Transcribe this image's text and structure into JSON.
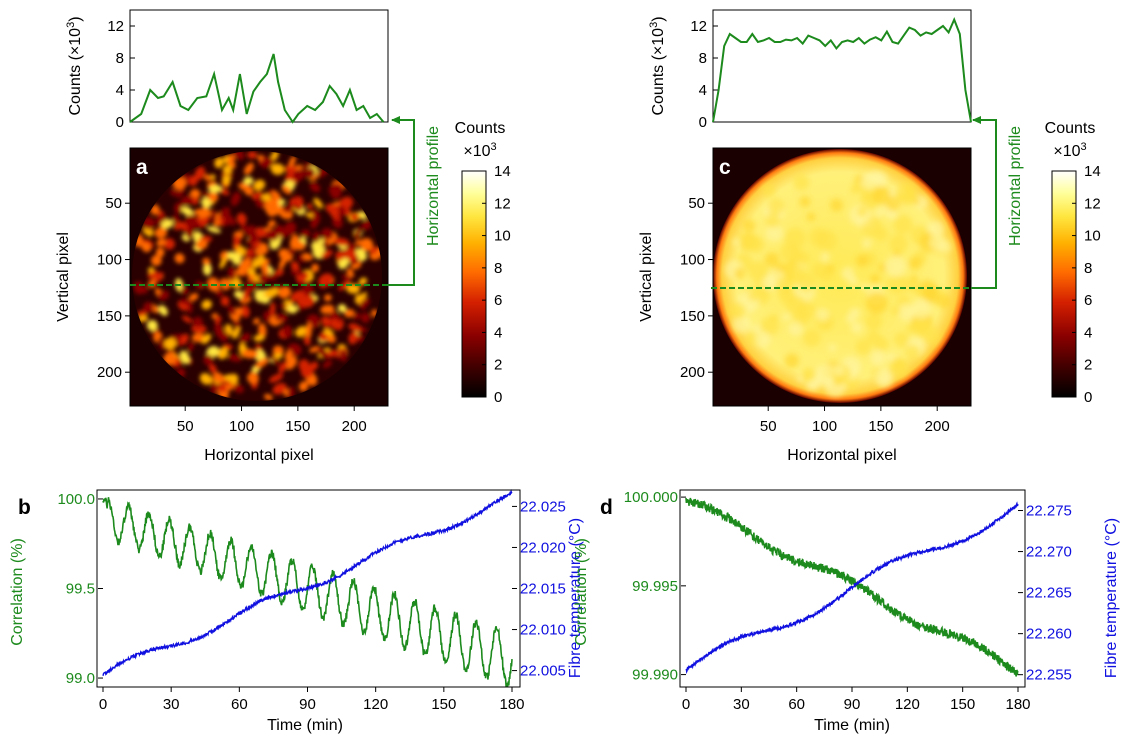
{
  "colors": {
    "green": "#1c8a1c",
    "blue": "#1010e0",
    "profile_arrow": "#1c8a1c",
    "colormap": [
      "#000000",
      "#3a0000",
      "#8a0000",
      "#d42000",
      "#ff6a00",
      "#ffb000",
      "#ffe640",
      "#ffff9a",
      "#ffffff"
    ]
  },
  "panel_a": {
    "letter": "a",
    "profile_ylabel": "Counts (×10",
    "profile_ylabel_exp": "3",
    "profile_ylabel_end": ")",
    "xlabel": "Horizontal pixel",
    "ylabel": "Vertical pixel",
    "annotation": "Horizontal profile",
    "colorbar_title": "Counts",
    "colorbar_unit": "×10",
    "colorbar_unit_exp": "3"
  },
  "panel_c": {
    "letter": "c",
    "profile_ylabel": "Counts (×10",
    "profile_ylabel_exp": "3",
    "profile_ylabel_end": ")",
    "xlabel": "Horizontal pixel",
    "ylabel": "Vertical pixel",
    "annotation": "Horizontal profile",
    "colorbar_title": "Counts",
    "colorbar_unit": "×10",
    "colorbar_unit_exp": "3"
  },
  "panel_b": {
    "letter": "b",
    "xlabel": "Time (min)",
    "ylabel_left": "Correlation (%)",
    "ylabel_right": "Fibre temperature (°C)"
  },
  "panel_d": {
    "letter": "d",
    "xlabel": "Time (min)",
    "ylabel_left": "Correlation (%)",
    "ylabel_right": "Fibre temperature (°C)"
  },
  "chart_data": [
    {
      "id": "a-profile",
      "type": "line",
      "x": [
        0,
        10,
        18,
        25,
        30,
        38,
        45,
        52,
        60,
        68,
        75,
        82,
        88,
        92,
        98,
        104,
        110,
        116,
        122,
        128,
        132,
        138,
        145,
        150,
        158,
        165,
        172,
        178,
        184,
        190,
        196,
        202,
        208,
        214,
        220,
        226
      ],
      "y": [
        0,
        1,
        4,
        3,
        3.2,
        5,
        2,
        1.5,
        3,
        3.2,
        6,
        1.5,
        3,
        1.5,
        6,
        1,
        3.8,
        5,
        6,
        8.5,
        5,
        1.5,
        0,
        1,
        2,
        1.5,
        2.5,
        4.5,
        3.5,
        2,
        4,
        1.5,
        2,
        0.5,
        1,
        0
      ],
      "xlim": [
        0,
        230
      ],
      "ylim": [
        0,
        14
      ],
      "yticks": [
        0,
        4,
        8,
        12
      ],
      "ylabel": "Counts (×10^3)"
    },
    {
      "id": "a-image",
      "type": "heatmap",
      "xticks": [
        50,
        100,
        150,
        200
      ],
      "yticks": [
        50,
        100,
        150,
        200
      ],
      "xlim": [
        1,
        230
      ],
      "ylim": [
        1,
        230
      ],
      "xlabel": "Horizontal pixel",
      "ylabel": "Vertical pixel",
      "profile_row": 125,
      "colorbar": {
        "min": 0,
        "max": 14,
        "ticks": [
          0,
          2,
          4,
          6,
          8,
          10,
          12,
          14
        ],
        "title": "Counts ×10^3"
      },
      "description_values": {
        "pattern": "speckle",
        "peak": 14
      }
    },
    {
      "id": "c-profile",
      "type": "line",
      "x": [
        0,
        5,
        10,
        15,
        20,
        25,
        30,
        35,
        40,
        45,
        50,
        55,
        60,
        65,
        70,
        75,
        80,
        85,
        90,
        95,
        100,
        105,
        110,
        115,
        120,
        125,
        130,
        135,
        140,
        145,
        150,
        155,
        160,
        165,
        170,
        175,
        180,
        185,
        190,
        195,
        200,
        205,
        210,
        215,
        220,
        225,
        230
      ],
      "y": [
        0,
        4,
        9.5,
        11,
        10.5,
        10,
        10,
        11,
        10,
        10.2,
        10.5,
        10,
        10,
        10.3,
        10.2,
        10.5,
        9.8,
        10.8,
        10.5,
        10.2,
        9.5,
        10.2,
        9.2,
        10,
        10.2,
        10,
        10.5,
        9.8,
        10.3,
        10.6,
        10.2,
        11.3,
        10,
        9.8,
        10.8,
        11.8,
        11.5,
        10.8,
        11.2,
        11,
        11.5,
        12,
        11.2,
        12.8,
        11,
        4,
        0
      ],
      "xlim": [
        0,
        230
      ],
      "ylim": [
        0,
        14
      ],
      "yticks": [
        0,
        4,
        8,
        12
      ],
      "ylabel": "Counts (×10^3)"
    },
    {
      "id": "c-image",
      "type": "heatmap",
      "xticks": [
        50,
        100,
        150,
        200
      ],
      "yticks": [
        50,
        100,
        150,
        200
      ],
      "xlim": [
        1,
        230
      ],
      "ylim": [
        1,
        230
      ],
      "xlabel": "Horizontal pixel",
      "ylabel": "Vertical pixel",
      "profile_row": 125,
      "colorbar": {
        "min": 0,
        "max": 14,
        "ticks": [
          0,
          2,
          4,
          6,
          8,
          10,
          12,
          14
        ],
        "title": "Counts ×10^3"
      },
      "description_values": {
        "pattern": "uniform",
        "peak": 12
      }
    },
    {
      "id": "b-timeseries",
      "type": "line",
      "xlabel": "Time (min)",
      "xlim": [
        0,
        180
      ],
      "xticks": [
        0,
        30,
        60,
        90,
        120,
        150,
        180
      ],
      "left_axis": {
        "label": "Correlation (%)",
        "ylim": [
          98.95,
          100.05
        ],
        "ticks": [
          "99.0",
          "99.5",
          "100.0"
        ],
        "tick_values": [
          99.0,
          99.5,
          100.0
        ]
      },
      "right_axis": {
        "label": "Fibre temperature (°C)",
        "ylim": [
          22.003,
          22.027
        ],
        "ticks": [
          "22.005",
          "22.010",
          "22.015",
          "22.020",
          "22.025"
        ],
        "tick_values": [
          22.005,
          22.01,
          22.015,
          22.02,
          22.025
        ]
      },
      "series": [
        {
          "name": "Correlation",
          "axis": "left",
          "start": 99.9,
          "end": 99.1,
          "oscillation_amplitude": 0.15,
          "oscillation_period_min": 9
        },
        {
          "name": "Fibre temperature",
          "axis": "right",
          "start": 22.0045,
          "end": 22.0262
        }
      ]
    },
    {
      "id": "d-timeseries",
      "type": "line",
      "xlabel": "Time (min)",
      "xlim": [
        0,
        180
      ],
      "xticks": [
        0,
        30,
        60,
        90,
        120,
        150,
        180
      ],
      "left_axis": {
        "label": "Correlation (%)",
        "ylim": [
          99.9893,
          100.0004
        ],
        "ticks": [
          "99.990",
          "99.995",
          "100.000"
        ],
        "tick_values": [
          99.99,
          99.995,
          100.0
        ]
      },
      "right_axis": {
        "label": "Fibre temperature (°C)",
        "ylim": [
          22.2535,
          22.2775
        ],
        "ticks": [
          "22.255",
          "22.260",
          "22.265",
          "22.270",
          "22.275"
        ],
        "tick_values": [
          22.255,
          22.26,
          22.265,
          22.27,
          22.275
        ]
      },
      "series": [
        {
          "name": "Correlation",
          "axis": "left",
          "start": 99.9998,
          "end": 99.9902
        },
        {
          "name": "Fibre temperature",
          "axis": "right",
          "start": 22.2555,
          "end": 22.2755
        }
      ]
    }
  ]
}
